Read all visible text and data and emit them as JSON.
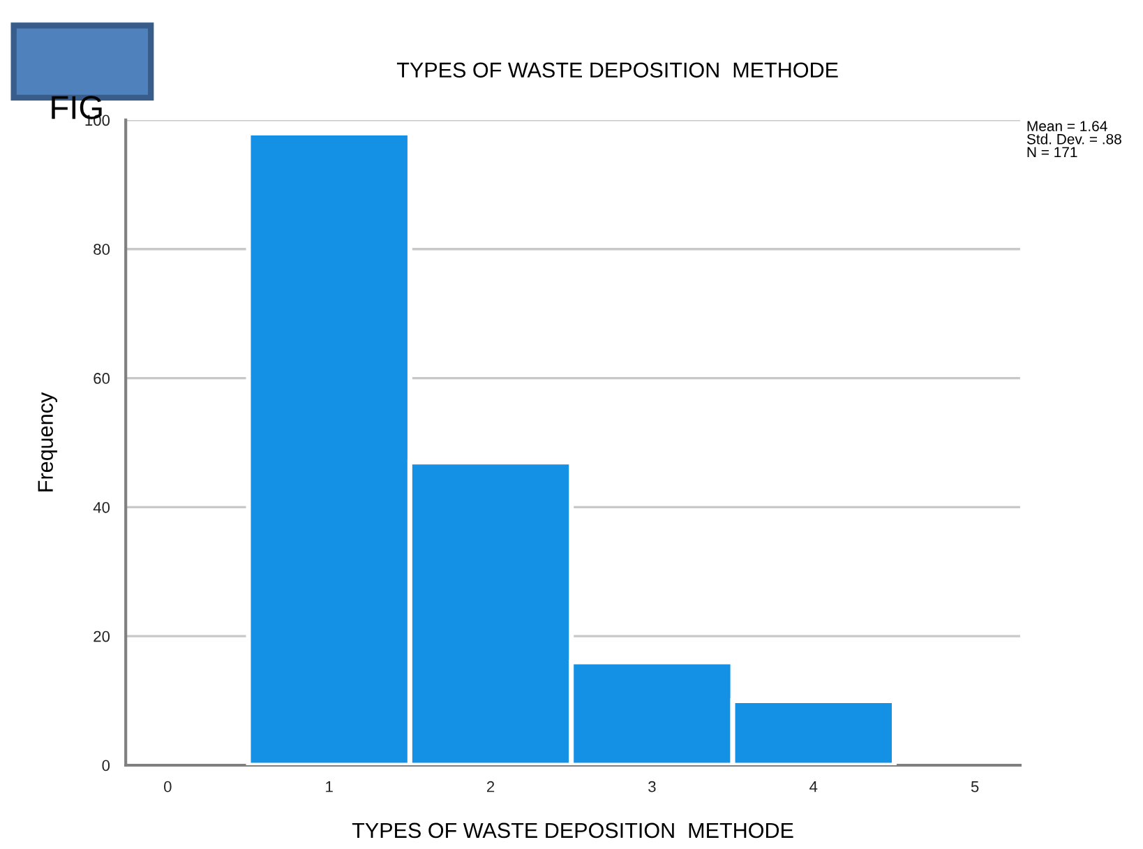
{
  "chart_data": {
    "type": "histogram",
    "title": "TYPES OF WASTE DEPOSITION  METHODE",
    "xlabel": "TYPES OF WASTE DEPOSITION  METHODE",
    "ylabel": "Frequency",
    "bins": [
      0.5,
      1.5,
      2.5,
      3.5,
      4.5
    ],
    "values": [
      98,
      47,
      16,
      10
    ],
    "color": "#1490e4",
    "xlim": [
      -0.26,
      5.28
    ],
    "xticks": [
      0,
      1,
      2,
      3,
      4,
      5
    ],
    "ylim": [
      0,
      100
    ],
    "yticks": [
      0,
      20,
      40,
      60,
      80,
      100
    ],
    "grid": "y",
    "annotations": [
      "Mean = 1.64\nStd. Dev. = .88\nN = 171",
      "FIG"
    ]
  }
}
